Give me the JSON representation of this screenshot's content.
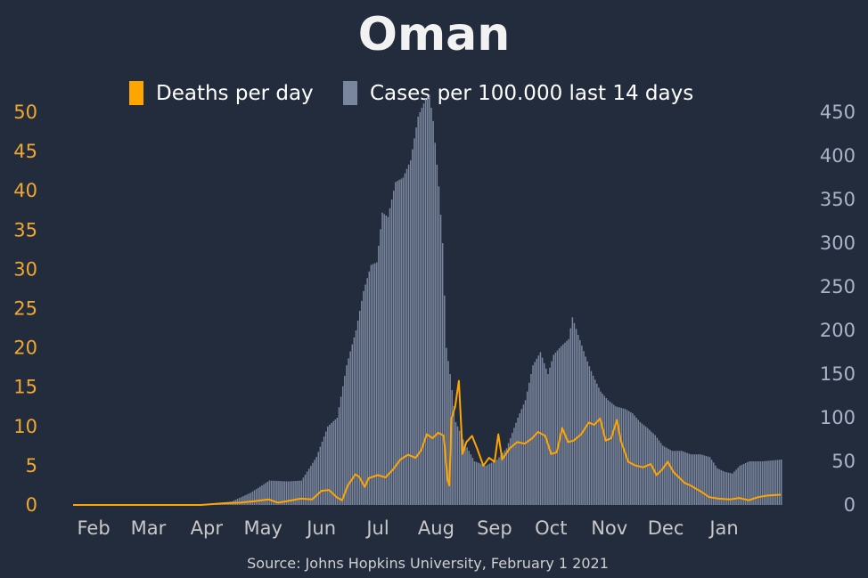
{
  "chart_data": {
    "type": "bar+line",
    "title": "Oman",
    "source": "Source: Johns Hopkins University, February 1 2021",
    "legend": {
      "placement": "top-center",
      "items": [
        {
          "label": "Deaths per day",
          "color": "#ffa500"
        },
        {
          "label": "Cases per 100.000 last 14 days",
          "color": "#7a869d"
        }
      ]
    },
    "left_axis": {
      "ylim": [
        0,
        50
      ],
      "ticks": [
        "0",
        "5",
        "10",
        "15",
        "20",
        "25",
        "30",
        "35",
        "40",
        "45",
        "50"
      ],
      "color": "#f0a830"
    },
    "right_axis": {
      "ylim": [
        0,
        450
      ],
      "ticks": [
        "0",
        "50",
        "100",
        "150",
        "200",
        "250",
        "300",
        "350",
        "400",
        "450"
      ],
      "color": "#a9b4c8"
    },
    "x_axis": {
      "start": "2020-01-22",
      "end": "2021-02-01",
      "month_ticks": [
        {
          "label": "Feb",
          "date": "2020-02-01"
        },
        {
          "label": "Mar",
          "date": "2020-03-01"
        },
        {
          "label": "Apr",
          "date": "2020-04-01"
        },
        {
          "label": "May",
          "date": "2020-05-01"
        },
        {
          "label": "Jun",
          "date": "2020-06-01"
        },
        {
          "label": "Jul",
          "date": "2020-07-01"
        },
        {
          "label": "Aug",
          "date": "2020-08-01"
        },
        {
          "label": "Sep",
          "date": "2020-09-01"
        },
        {
          "label": "Oct",
          "date": "2020-10-01"
        },
        {
          "label": "Nov",
          "date": "2020-11-01"
        },
        {
          "label": "Dec",
          "date": "2020-12-01"
        },
        {
          "label": "Jan",
          "date": "2021-01-01"
        }
      ]
    },
    "series": [
      {
        "name": "Cases per 100.000 last 14 days",
        "kind": "bar",
        "axis": "right",
        "points": [
          [
            "2020-01-22",
            0
          ],
          [
            "2020-03-15",
            0
          ],
          [
            "2020-04-01",
            1
          ],
          [
            "2020-04-15",
            4
          ],
          [
            "2020-04-25",
            14
          ],
          [
            "2020-05-05",
            28
          ],
          [
            "2020-05-15",
            27
          ],
          [
            "2020-05-22",
            28
          ],
          [
            "2020-05-30",
            55
          ],
          [
            "2020-06-05",
            90
          ],
          [
            "2020-06-10",
            100
          ],
          [
            "2020-06-15",
            160
          ],
          [
            "2020-06-20",
            200
          ],
          [
            "2020-06-24",
            245
          ],
          [
            "2020-06-28",
            275
          ],
          [
            "2020-07-01",
            278
          ],
          [
            "2020-07-04",
            335
          ],
          [
            "2020-07-07",
            330
          ],
          [
            "2020-07-11",
            370
          ],
          [
            "2020-07-15",
            375
          ],
          [
            "2020-07-19",
            395
          ],
          [
            "2020-07-23",
            445
          ],
          [
            "2020-07-27",
            465
          ],
          [
            "2020-07-29",
            470
          ],
          [
            "2020-07-31",
            440
          ],
          [
            "2020-08-03",
            365
          ],
          [
            "2020-08-05",
            300
          ],
          [
            "2020-08-07",
            180
          ],
          [
            "2020-08-09",
            150
          ],
          [
            "2020-08-12",
            95
          ],
          [
            "2020-08-17",
            70
          ],
          [
            "2020-08-22",
            50
          ],
          [
            "2020-08-28",
            45
          ],
          [
            "2020-09-03",
            52
          ],
          [
            "2020-09-08",
            65
          ],
          [
            "2020-09-14",
            100
          ],
          [
            "2020-09-18",
            120
          ],
          [
            "2020-09-22",
            160
          ],
          [
            "2020-09-26",
            175
          ],
          [
            "2020-09-30",
            150
          ],
          [
            "2020-10-03",
            172
          ],
          [
            "2020-10-07",
            182
          ],
          [
            "2020-10-11",
            190
          ],
          [
            "2020-10-13",
            215
          ],
          [
            "2020-10-16",
            195
          ],
          [
            "2020-10-20",
            170
          ],
          [
            "2020-10-24",
            148
          ],
          [
            "2020-10-28",
            130
          ],
          [
            "2020-11-01",
            120
          ],
          [
            "2020-11-05",
            113
          ],
          [
            "2020-11-10",
            110
          ],
          [
            "2020-11-14",
            105
          ],
          [
            "2020-11-18",
            95
          ],
          [
            "2020-11-22",
            88
          ],
          [
            "2020-11-26",
            80
          ],
          [
            "2020-11-30",
            68
          ],
          [
            "2020-12-05",
            62
          ],
          [
            "2020-12-10",
            62
          ],
          [
            "2020-12-15",
            58
          ],
          [
            "2020-12-20",
            58
          ],
          [
            "2020-12-25",
            55
          ],
          [
            "2020-12-29",
            42
          ],
          [
            "2021-01-02",
            38
          ],
          [
            "2021-01-06",
            36
          ],
          [
            "2021-01-10",
            45
          ],
          [
            "2021-01-15",
            50
          ],
          [
            "2021-01-22",
            50
          ],
          [
            "2021-02-01",
            52
          ]
        ]
      },
      {
        "name": "Deaths per day",
        "kind": "line",
        "axis": "left",
        "color": "#ffa500",
        "points": [
          [
            "2020-01-22",
            0
          ],
          [
            "2020-03-30",
            0
          ],
          [
            "2020-04-10",
            0.2
          ],
          [
            "2020-04-20",
            0.3
          ],
          [
            "2020-04-28",
            0.5
          ],
          [
            "2020-05-05",
            0.7
          ],
          [
            "2020-05-10",
            0.3
          ],
          [
            "2020-05-15",
            0.5
          ],
          [
            "2020-05-22",
            0.8
          ],
          [
            "2020-05-28",
            0.7
          ],
          [
            "2020-06-02",
            1.8
          ],
          [
            "2020-06-06",
            1.9
          ],
          [
            "2020-06-10",
            1.0
          ],
          [
            "2020-06-13",
            0.6
          ],
          [
            "2020-06-16",
            2.5
          ],
          [
            "2020-06-20",
            3.9
          ],
          [
            "2020-06-22",
            3.6
          ],
          [
            "2020-06-25",
            2.3
          ],
          [
            "2020-06-27",
            3.4
          ],
          [
            "2020-07-02",
            3.8
          ],
          [
            "2020-07-06",
            3.5
          ],
          [
            "2020-07-10",
            4.5
          ],
          [
            "2020-07-14",
            5.8
          ],
          [
            "2020-07-18",
            6.4
          ],
          [
            "2020-07-22",
            6.0
          ],
          [
            "2020-07-25",
            7.0
          ],
          [
            "2020-07-28",
            9.0
          ],
          [
            "2020-07-31",
            8.5
          ],
          [
            "2020-08-03",
            9.2
          ],
          [
            "2020-08-06",
            8.8
          ],
          [
            "2020-08-08",
            3.2
          ],
          [
            "2020-08-09",
            2.5
          ],
          [
            "2020-08-10",
            11.0
          ],
          [
            "2020-08-12",
            12.5
          ],
          [
            "2020-08-14",
            15.8
          ],
          [
            "2020-08-16",
            6.5
          ],
          [
            "2020-08-18",
            8.0
          ],
          [
            "2020-08-21",
            8.8
          ],
          [
            "2020-08-24",
            7.0
          ],
          [
            "2020-08-27",
            5.0
          ],
          [
            "2020-08-30",
            6.0
          ],
          [
            "2020-09-02",
            5.5
          ],
          [
            "2020-09-04",
            9.0
          ],
          [
            "2020-09-06",
            5.8
          ],
          [
            "2020-09-10",
            7.2
          ],
          [
            "2020-09-14",
            8.0
          ],
          [
            "2020-09-18",
            7.8
          ],
          [
            "2020-09-22",
            8.5
          ],
          [
            "2020-09-25",
            9.3
          ],
          [
            "2020-09-29",
            8.8
          ],
          [
            "2020-10-02",
            6.5
          ],
          [
            "2020-10-05",
            6.7
          ],
          [
            "2020-10-08",
            9.8
          ],
          [
            "2020-10-11",
            8.0
          ],
          [
            "2020-10-14",
            8.2
          ],
          [
            "2020-10-18",
            9.0
          ],
          [
            "2020-10-22",
            10.5
          ],
          [
            "2020-10-25",
            10.2
          ],
          [
            "2020-10-28",
            11.0
          ],
          [
            "2020-10-31",
            8.2
          ],
          [
            "2020-11-03",
            8.5
          ],
          [
            "2020-11-06",
            10.8
          ],
          [
            "2020-11-08",
            8.2
          ],
          [
            "2020-11-12",
            5.5
          ],
          [
            "2020-11-16",
            5.0
          ],
          [
            "2020-11-20",
            4.8
          ],
          [
            "2020-11-24",
            5.2
          ],
          [
            "2020-11-27",
            3.8
          ],
          [
            "2020-11-30",
            4.5
          ],
          [
            "2020-12-03",
            5.5
          ],
          [
            "2020-12-06",
            4.2
          ],
          [
            "2020-12-09",
            3.5
          ],
          [
            "2020-12-12",
            2.8
          ],
          [
            "2020-12-15",
            2.5
          ],
          [
            "2020-12-20",
            1.8
          ],
          [
            "2020-12-25",
            1.0
          ],
          [
            "2020-12-30",
            0.8
          ],
          [
            "2021-01-05",
            0.7
          ],
          [
            "2021-01-10",
            0.9
          ],
          [
            "2021-01-15",
            0.6
          ],
          [
            "2021-01-20",
            1.0
          ],
          [
            "2021-01-25",
            1.2
          ],
          [
            "2021-02-01",
            1.3
          ]
        ]
      }
    ]
  }
}
